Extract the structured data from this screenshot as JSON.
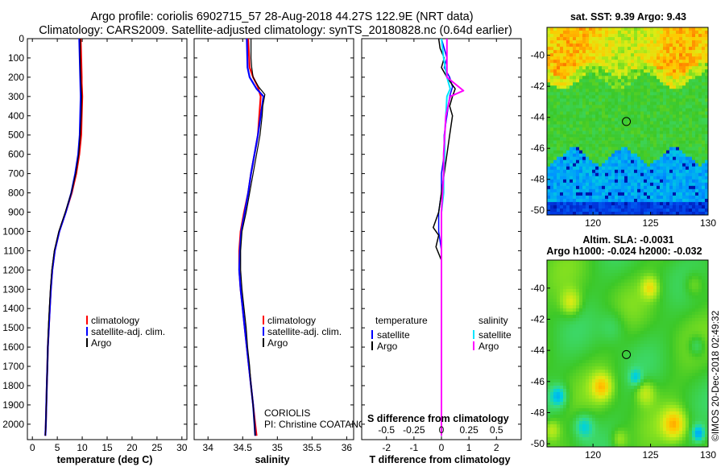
{
  "figure": {
    "title_line1": "Argo profile: coriolis 6902715_57 28-Aug-2018 44.27S 122.9E (NRT data)",
    "title_line2": "Climatology: CARS2009. Satellite-adjusted climatology: synTS_20180828.nc (0.64d earlier)",
    "watermark_institution": "CORIOLIS",
    "watermark_pi": "PI: Christine COATANOAN",
    "footer_stamp": "©IMOS 20-Dec-2018 02:49:32"
  },
  "colors": {
    "climatology": "#ff0000",
    "satellite": "#0000ff",
    "argo": "#000000",
    "satellite_salinity": "#00e5ff",
    "argo_salinity": "#ff00ff"
  },
  "chart_data": [
    {
      "type": "line",
      "name": "temperature-profile",
      "xlabel": "temperature (deg C)",
      "ylabel": "",
      "xlim": [
        -1,
        31
      ],
      "ylim": [
        2080,
        0
      ],
      "xticks": [
        0,
        5,
        10,
        15,
        20,
        25,
        30
      ],
      "yticks": [
        0,
        100,
        200,
        300,
        400,
        500,
        600,
        700,
        800,
        900,
        1000,
        1100,
        1200,
        1300,
        1400,
        1500,
        1600,
        1700,
        1800,
        1900,
        2000
      ],
      "legend": [
        "climatology",
        "satellite-adj. clim.",
        "Argo"
      ],
      "series": [
        {
          "name": "climatology",
          "color": "#ff0000",
          "width": 2.2,
          "points": [
            [
              9.7,
              0
            ],
            [
              9.8,
              100
            ],
            [
              9.9,
              200
            ],
            [
              9.9,
              230
            ],
            [
              10.0,
              300
            ],
            [
              9.9,
              400
            ],
            [
              9.8,
              500
            ],
            [
              9.4,
              600
            ],
            [
              8.8,
              700
            ],
            [
              7.9,
              800
            ],
            [
              6.7,
              900
            ],
            [
              5.4,
              1000
            ],
            [
              4.5,
              1100
            ],
            [
              4.0,
              1200
            ],
            [
              3.7,
              1300
            ],
            [
              3.5,
              1400
            ],
            [
              3.3,
              1500
            ],
            [
              3.1,
              1600
            ],
            [
              3.0,
              1700
            ],
            [
              2.9,
              1800
            ],
            [
              2.8,
              1900
            ],
            [
              2.7,
              2000
            ],
            [
              2.6,
              2060
            ]
          ]
        },
        {
          "name": "satellite-adj. clim.",
          "color": "#0000ff",
          "width": 2.2,
          "points": [
            [
              9.4,
              0
            ],
            [
              9.5,
              100
            ],
            [
              9.6,
              200
            ],
            [
              9.7,
              300
            ],
            [
              9.6,
              400
            ],
            [
              9.5,
              500
            ],
            [
              9.2,
              600
            ],
            [
              8.6,
              700
            ],
            [
              7.8,
              800
            ],
            [
              6.7,
              900
            ],
            [
              5.4,
              1000
            ],
            [
              4.5,
              1100
            ],
            [
              4.0,
              1200
            ],
            [
              3.7,
              1300
            ],
            [
              3.5,
              1400
            ],
            [
              3.3,
              1500
            ],
            [
              3.1,
              1600
            ],
            [
              3.0,
              1700
            ],
            [
              2.9,
              1800
            ],
            [
              2.8,
              1900
            ],
            [
              2.7,
              2000
            ],
            [
              2.6,
              2060
            ]
          ]
        },
        {
          "name": "Argo",
          "color": "#000000",
          "width": 1.2,
          "points": [
            [
              9.6,
              0
            ],
            [
              9.6,
              100
            ],
            [
              9.7,
              200
            ],
            [
              9.8,
              250
            ],
            [
              9.9,
              300
            ],
            [
              9.8,
              400
            ],
            [
              9.6,
              500
            ],
            [
              9.3,
              600
            ],
            [
              8.7,
              700
            ],
            [
              7.8,
              800
            ],
            [
              6.6,
              900
            ],
            [
              5.3,
              1000
            ],
            [
              4.4,
              1100
            ],
            [
              3.9,
              1200
            ],
            [
              3.6,
              1300
            ],
            [
              3.4,
              1400
            ],
            [
              3.2,
              1500
            ],
            [
              3.1,
              1600
            ],
            [
              3.0,
              1700
            ],
            [
              2.9,
              1800
            ],
            [
              2.8,
              1900
            ],
            [
              2.7,
              2000
            ],
            [
              2.6,
              2060
            ]
          ]
        }
      ]
    },
    {
      "type": "line",
      "name": "salinity-profile",
      "xlabel": "salinity",
      "ylabel": "",
      "xlim": [
        33.8,
        36.1
      ],
      "ylim": [
        2080,
        0
      ],
      "xticks": [
        34,
        34.5,
        35,
        35.5,
        36
      ],
      "xticklabels": [
        "34",
        "34.5",
        "35",
        "35.5",
        "36"
      ],
      "legend": [
        "climatology",
        "satellite-adj. clim.",
        "Argo"
      ],
      "series": [
        {
          "name": "climatology",
          "color": "#ff0000",
          "width": 2.2,
          "points": [
            [
              34.58,
              0
            ],
            [
              34.6,
              150
            ],
            [
              34.65,
              200
            ],
            [
              34.72,
              250
            ],
            [
              34.76,
              300
            ],
            [
              34.74,
              400
            ],
            [
              34.72,
              500
            ],
            [
              34.67,
              600
            ],
            [
              34.62,
              700
            ],
            [
              34.58,
              800
            ],
            [
              34.52,
              900
            ],
            [
              34.47,
              1000
            ],
            [
              34.45,
              1100
            ],
            [
              34.45,
              1200
            ],
            [
              34.47,
              1300
            ],
            [
              34.5,
              1400
            ],
            [
              34.53,
              1500
            ],
            [
              34.56,
              1600
            ],
            [
              34.59,
              1700
            ],
            [
              34.62,
              1800
            ],
            [
              34.65,
              1900
            ],
            [
              34.68,
              2000
            ],
            [
              34.7,
              2060
            ]
          ]
        },
        {
          "name": "satellite-adj. clim.",
          "color": "#0000ff",
          "width": 2.2,
          "points": [
            [
              34.56,
              0
            ],
            [
              34.57,
              150
            ],
            [
              34.6,
              200
            ],
            [
              34.7,
              260
            ],
            [
              34.8,
              300
            ],
            [
              34.76,
              400
            ],
            [
              34.72,
              500
            ],
            [
              34.67,
              600
            ],
            [
              34.62,
              700
            ],
            [
              34.58,
              800
            ],
            [
              34.53,
              900
            ],
            [
              34.48,
              1000
            ],
            [
              34.46,
              1100
            ],
            [
              34.45,
              1200
            ],
            [
              34.47,
              1300
            ],
            [
              34.5,
              1400
            ],
            [
              34.53,
              1500
            ],
            [
              34.56,
              1600
            ],
            [
              34.59,
              1700
            ],
            [
              34.62,
              1800
            ],
            [
              34.65,
              1900
            ],
            [
              34.67,
              2000
            ],
            [
              34.68,
              2060
            ]
          ]
        },
        {
          "name": "Argo",
          "color": "#000000",
          "width": 1.2,
          "points": [
            [
              34.62,
              0
            ],
            [
              34.62,
              100
            ],
            [
              34.63,
              150
            ],
            [
              34.65,
              200
            ],
            [
              34.73,
              250
            ],
            [
              34.82,
              290
            ],
            [
              34.79,
              350
            ],
            [
              34.78,
              400
            ],
            [
              34.75,
              500
            ],
            [
              34.7,
              600
            ],
            [
              34.65,
              700
            ],
            [
              34.6,
              800
            ],
            [
              34.55,
              900
            ],
            [
              34.49,
              1000
            ],
            [
              34.47,
              1100
            ],
            [
              34.47,
              1200
            ],
            [
              34.49,
              1300
            ],
            [
              34.52,
              1400
            ],
            [
              34.55,
              1500
            ],
            [
              34.57,
              1600
            ],
            [
              34.6,
              1700
            ],
            [
              34.62,
              1800
            ],
            [
              34.65,
              1900
            ],
            [
              34.67,
              2000
            ],
            [
              34.68,
              2060
            ]
          ]
        }
      ]
    },
    {
      "type": "line",
      "name": "difference-profile",
      "xlabel": "T difference from climatology",
      "top_axis_label": "S difference from climatology",
      "xlim": [
        -2.9,
        2.9
      ],
      "ylim": [
        2080,
        0
      ],
      "xticks": [
        -2,
        -1,
        0,
        1,
        2
      ],
      "s_ticks": [
        "-0.5",
        "-0.25",
        "0",
        "0.25",
        "0.5"
      ],
      "s_tick_values": [
        -0.5,
        -0.25,
        0,
        0.25,
        0.5
      ],
      "s_scale": 4,
      "legend_left_title": "temperature",
      "legend_right_title": "salinity",
      "legend": [
        "satellite",
        "Argo"
      ],
      "series": [
        {
          "name": "T satellite",
          "color": "#0000ff",
          "width": 1.5,
          "points": [
            [
              0.0,
              0
            ],
            [
              0.1,
              50
            ],
            [
              0.2,
              100
            ],
            [
              0.1,
              150
            ],
            [
              0.3,
              200
            ],
            [
              0.4,
              250
            ],
            [
              0.3,
              300
            ],
            [
              0.2,
              400
            ],
            [
              0.1,
              500
            ],
            [
              0.1,
              600
            ],
            [
              0.0,
              700
            ],
            [
              0.0,
              800
            ],
            [
              -0.1,
              900
            ],
            [
              -0.1,
              1000
            ],
            [
              0.0,
              1100
            ],
            [
              0.0,
              1200
            ],
            [
              0.0,
              1400
            ],
            [
              0.0,
              1600
            ],
            [
              0.0,
              1800
            ],
            [
              0.0,
              2000
            ],
            [
              0.0,
              2060
            ]
          ]
        },
        {
          "name": "T Argo",
          "color": "#000000",
          "width": 1.5,
          "points": [
            [
              -0.1,
              0
            ],
            [
              -0.05,
              50
            ],
            [
              0.1,
              100
            ],
            [
              0.0,
              150
            ],
            [
              0.2,
              200
            ],
            [
              0.5,
              260
            ],
            [
              0.4,
              300
            ],
            [
              0.3,
              350
            ],
            [
              0.4,
              400
            ],
            [
              0.3,
              500
            ],
            [
              0.2,
              600
            ],
            [
              0.1,
              700
            ],
            [
              0.0,
              800
            ],
            [
              -0.1,
              900
            ],
            [
              -0.3,
              980
            ],
            [
              -0.1,
              1020
            ],
            [
              -0.2,
              1080
            ],
            [
              0.0,
              1150
            ],
            [
              0.0,
              1200
            ],
            [
              0.0,
              1400
            ],
            [
              0.0,
              1600
            ],
            [
              0.0,
              1800
            ],
            [
              0.0,
              2000
            ],
            [
              0.0,
              2060
            ]
          ]
        },
        {
          "name": "S satellite",
          "color": "#00e5ff",
          "width": 2.0,
          "points": [
            [
              0.0,
              0
            ],
            [
              0.02,
              100
            ],
            [
              0.05,
              200
            ],
            [
              0.08,
              260
            ],
            [
              0.05,
              300
            ],
            [
              0.04,
              400
            ],
            [
              0.03,
              500
            ],
            [
              0.03,
              600
            ],
            [
              0.02,
              700
            ],
            [
              0.02,
              800
            ],
            [
              0.0,
              900
            ],
            [
              0.0,
              1000
            ],
            [
              0.0,
              1100
            ],
            [
              0.0,
              1200
            ],
            [
              0.0,
              1400
            ],
            [
              0.0,
              1600
            ],
            [
              0.0,
              1800
            ],
            [
              0.0,
              2000
            ],
            [
              0.0,
              2060
            ]
          ]
        },
        {
          "name": "S Argo",
          "color": "#ff00ff",
          "width": 2.0,
          "points": [
            [
              0.05,
              0
            ],
            [
              0.05,
              100
            ],
            [
              0.05,
              200
            ],
            [
              0.2,
              270
            ],
            [
              0.08,
              300
            ],
            [
              0.04,
              400
            ],
            [
              0.03,
              500
            ],
            [
              0.02,
              600
            ],
            [
              0.02,
              700
            ],
            [
              0.01,
              800
            ],
            [
              0.0,
              900
            ],
            [
              0.0,
              1000
            ],
            [
              0.0,
              1100
            ],
            [
              0.0,
              1200
            ],
            [
              0.0,
              1400
            ],
            [
              0.0,
              1600
            ],
            [
              0.0,
              1800
            ],
            [
              0.0,
              2000
            ],
            [
              0.0,
              2060
            ]
          ]
        }
      ]
    },
    {
      "type": "heatmap",
      "name": "sst-map",
      "title": "sat. SST: 9.39 Argo: 9.43",
      "xlim": [
        116,
        130
      ],
      "ylim": [
        -50.3,
        -38.2
      ],
      "xticks": [
        120,
        125,
        130
      ],
      "yticks": [
        -40,
        -42,
        -44,
        -46,
        -48,
        -50
      ],
      "marker": {
        "lon": 122.9,
        "lat": -44.27
      }
    },
    {
      "type": "heatmap",
      "name": "sla-map",
      "title_line1": "Altim. SLA: -0.0031",
      "title_line2": "Argo h1000: -0.024 h2000: -0.032",
      "xlim": [
        116,
        130
      ],
      "ylim": [
        -50.2,
        -38.2
      ],
      "xticks": [
        120,
        125,
        130
      ],
      "yticks": [
        -40,
        -42,
        -44,
        -46,
        -48,
        -50
      ],
      "marker": {
        "lon": 122.9,
        "lat": -44.27
      }
    }
  ]
}
